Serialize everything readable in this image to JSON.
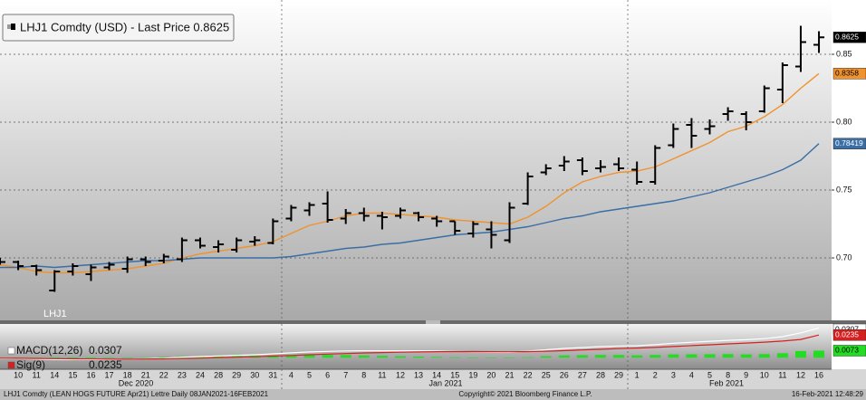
{
  "chart_data": {
    "type": "ohlc",
    "title": "LHJ1 Comdty (USD) - Last Price 0.8625",
    "categories": [
      null,
      "10",
      "11",
      "14",
      "15",
      "16",
      "17",
      "18",
      "21",
      "22",
      "23",
      "24",
      "28",
      "29",
      "30",
      "31",
      "4",
      "5",
      "6",
      "7",
      "8",
      "11",
      "12",
      "13",
      "14",
      "15",
      "19",
      "20",
      "21",
      "22",
      "25",
      "26",
      "27",
      "28",
      "29",
      "1",
      "2",
      "3",
      "4",
      "5",
      "8",
      "9",
      "10",
      "11",
      "12",
      "16"
    ],
    "month_labels": [
      "Dec 2020",
      "Jan 2021",
      "Feb 2021"
    ],
    "color": "#000000",
    "open": [
      0.698,
      0.697,
      0.694,
      0.676,
      0.69,
      0.688,
      0.693,
      0.692,
      0.699,
      0.698,
      0.699,
      0.713,
      0.708,
      0.706,
      0.712,
      0.711,
      0.729,
      0.735,
      0.74,
      0.729,
      0.733,
      0.731,
      0.731,
      0.733,
      0.729,
      0.727,
      0.718,
      0.721,
      0.713,
      0.74,
      0.763,
      0.768,
      0.772,
      0.766,
      0.769,
      0.765,
      0.756,
      0.783,
      0.798,
      0.795,
      0.806,
      0.806,
      0.808,
      0.824,
      0.841,
      0.857
    ],
    "high": [
      0.7,
      0.698,
      0.695,
      0.691,
      0.696,
      0.695,
      0.697,
      0.701,
      0.701,
      0.703,
      0.715,
      0.715,
      0.713,
      0.715,
      0.716,
      0.729,
      0.739,
      0.741,
      0.749,
      0.736,
      0.737,
      0.734,
      0.737,
      0.734,
      0.731,
      0.727,
      0.727,
      0.727,
      0.741,
      0.763,
      0.769,
      0.775,
      0.774,
      0.772,
      0.774,
      0.771,
      0.783,
      0.799,
      0.803,
      0.802,
      0.811,
      0.808,
      0.827,
      0.844,
      0.871,
      0.867
    ],
    "low": [
      0.695,
      0.691,
      0.687,
      0.675,
      0.687,
      0.683,
      0.691,
      0.689,
      0.694,
      0.696,
      0.697,
      0.707,
      0.704,
      0.704,
      0.709,
      0.71,
      0.727,
      0.731,
      0.726,
      0.725,
      0.727,
      0.721,
      0.729,
      0.727,
      0.723,
      0.717,
      0.715,
      0.707,
      0.711,
      0.739,
      0.761,
      0.764,
      0.761,
      0.763,
      0.764,
      0.754,
      0.754,
      0.781,
      0.781,
      0.791,
      0.801,
      0.794,
      0.807,
      0.814,
      0.837,
      0.851
    ],
    "close": [
      0.697,
      0.694,
      0.691,
      0.69,
      0.694,
      0.693,
      0.695,
      0.699,
      0.697,
      0.701,
      0.713,
      0.709,
      0.71,
      0.713,
      0.713,
      0.727,
      0.737,
      0.739,
      0.728,
      0.733,
      0.731,
      0.73,
      0.735,
      0.73,
      0.727,
      0.72,
      0.725,
      0.717,
      0.737,
      0.76,
      0.766,
      0.771,
      0.764,
      0.767,
      0.766,
      0.756,
      0.781,
      0.795,
      0.79,
      0.797,
      0.808,
      0.8,
      0.825,
      0.842,
      0.859,
      0.8625
    ],
    "moving_averages": [
      {
        "color": "#f0922e",
        "values": [
          0.695,
          0.693,
          0.69,
          0.689,
          0.689,
          0.69,
          0.691,
          0.692,
          0.694,
          0.696,
          0.7,
          0.703,
          0.705,
          0.707,
          0.709,
          0.712,
          0.718,
          0.724,
          0.727,
          0.731,
          0.733,
          0.733,
          0.732,
          0.731,
          0.73,
          0.728,
          0.727,
          0.726,
          0.725,
          0.73,
          0.738,
          0.748,
          0.756,
          0.76,
          0.763,
          0.764,
          0.767,
          0.773,
          0.779,
          0.785,
          0.793,
          0.797,
          0.804,
          0.813,
          0.825,
          0.8358
        ]
      },
      {
        "color": "#3a6ea5",
        "values": [
          0.693,
          0.693,
          0.694,
          0.693,
          0.694,
          0.695,
          0.696,
          0.697,
          0.698,
          0.698,
          0.699,
          0.7,
          0.7,
          0.7,
          0.7,
          0.7,
          0.701,
          0.703,
          0.705,
          0.707,
          0.708,
          0.71,
          0.711,
          0.713,
          0.715,
          0.717,
          0.718,
          0.719,
          0.721,
          0.723,
          0.726,
          0.729,
          0.731,
          0.734,
          0.736,
          0.738,
          0.74,
          0.742,
          0.745,
          0.748,
          0.752,
          0.756,
          0.76,
          0.765,
          0.772,
          0.78419
        ]
      }
    ],
    "ylim": [
      0.654,
      0.89
    ],
    "yticks": [
      {
        "value": 0.7,
        "label": "0.70"
      },
      0.75,
      {
        "value": 0.8,
        "label": "0.80"
      },
      0.85
    ],
    "grid": true,
    "lower_panel": {
      "title": "LHJ1",
      "ylim": [
        -0.012,
        0.035
      ],
      "series": [
        {
          "name": "MACD(12,26)",
          "color": "#ffffff",
          "values": [
            -0.001,
            -0.001,
            -0.0015,
            -0.002,
            -0.002,
            -0.002,
            -0.0018,
            -0.0015,
            -0.001,
            -0.0005,
            0.0005,
            0.0012,
            0.0018,
            0.0025,
            0.003,
            0.004,
            0.005,
            0.006,
            0.0065,
            0.007,
            0.0072,
            0.0072,
            0.0072,
            0.0072,
            0.007,
            0.0066,
            0.0062,
            0.0058,
            0.0058,
            0.0068,
            0.0082,
            0.0096,
            0.0106,
            0.0115,
            0.0122,
            0.0124,
            0.0135,
            0.015,
            0.016,
            0.017,
            0.018,
            0.0186,
            0.0198,
            0.0218,
            0.0258,
            0.0307
          ]
        },
        {
          "name": "Sig(9)",
          "color": "#d62020",
          "values": [
            -0.0005,
            -0.0006,
            -0.0008,
            -0.001,
            -0.0012,
            -0.0014,
            -0.0015,
            -0.0015,
            -0.0014,
            -0.0012,
            -0.0009,
            -0.0005,
            0,
            0.0005,
            0.001,
            0.0016,
            0.0023,
            0.003,
            0.0037,
            0.0043,
            0.0049,
            0.0053,
            0.0057,
            0.006,
            0.0062,
            0.0063,
            0.0063,
            0.0062,
            0.0061,
            0.0063,
            0.0067,
            0.0073,
            0.008,
            0.0087,
            0.0094,
            0.01,
            0.0107,
            0.0116,
            0.0125,
            0.0134,
            0.0143,
            0.0152,
            0.0161,
            0.0172,
            0.0189,
            0.0235
          ]
        }
      ],
      "histogram": {
        "color": "#22dd22",
        "values": [
          -0.0005,
          -0.0004,
          -0.0007,
          -0.001,
          -0.0008,
          -0.0006,
          -0.0003,
          0,
          0.0004,
          0.0007,
          0.0014,
          0.0017,
          0.0018,
          0.002,
          0.002,
          0.0024,
          0.0027,
          0.003,
          0.0028,
          0.0027,
          0.0023,
          0.0019,
          0.0015,
          0.0012,
          0.0008,
          0.0003,
          -0.0001,
          -0.0004,
          -0.0003,
          0.0005,
          0.0015,
          0.0023,
          0.0026,
          0.0028,
          0.0028,
          0.0024,
          0.0028,
          0.0034,
          0.0035,
          0.0036,
          0.0037,
          0.0034,
          0.0037,
          0.0046,
          0.0069,
          0.0073
        ]
      }
    },
    "footer": {
      "left": "LHJ1 Comdty (LEAN HOGS FUTURE  Apr21) Lettre  Daily 08JAN2021-16FEB2021",
      "center": "Copyright© 2021 Bloomberg Finance L.P.",
      "right": "16-Feb-2021 12:48:29"
    }
  }
}
